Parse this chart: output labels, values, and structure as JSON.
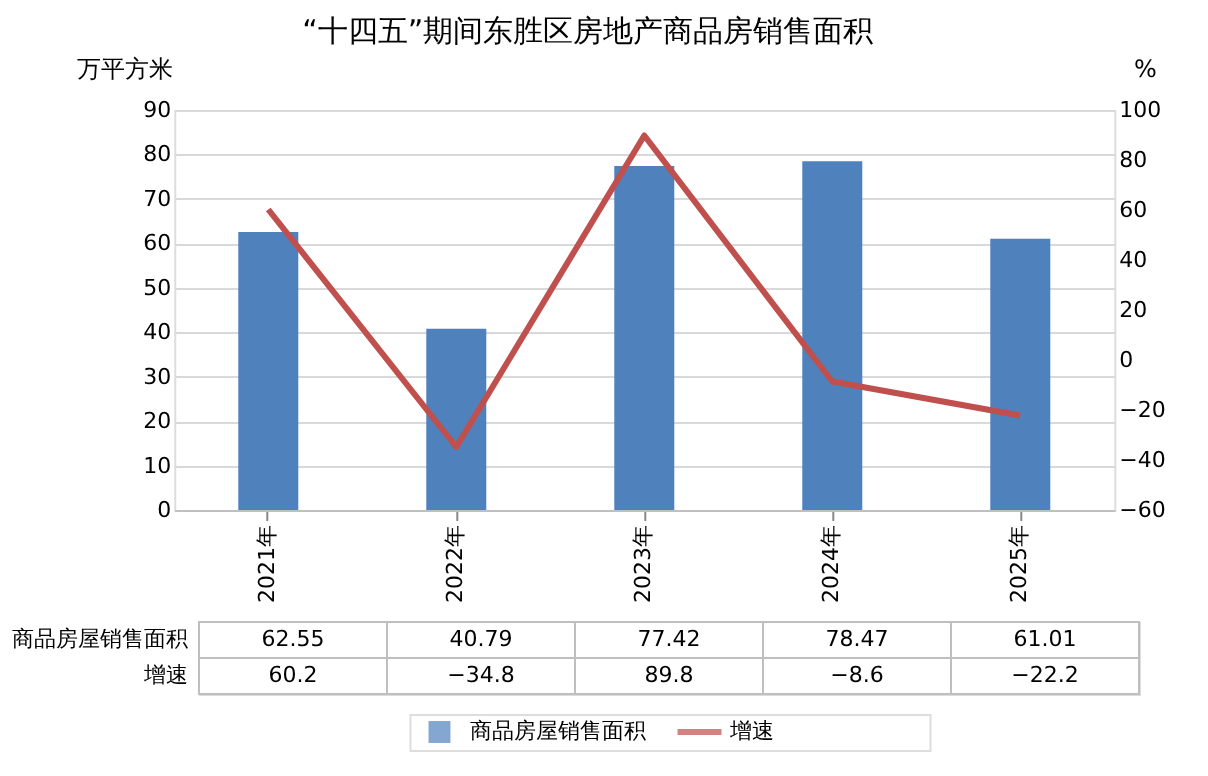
{
  "chart_data": {
    "type": "bar",
    "title": "“十四五”期间东胜区房地产商品房销售面积",
    "ylabel": "万平方米",
    "y2label": "%",
    "categories": [
      "2021年",
      "2022年",
      "2023年",
      "2024年",
      "2025年"
    ],
    "series": [
      {
        "name": "商品房屋销售面积",
        "color": "#4f81bd",
        "values": [
          62.55,
          40.79,
          77.42,
          78.47,
          61.01
        ]
      },
      {
        "name": "增速",
        "type": "line",
        "axis": "y2",
        "color": "#c0504d",
        "values": [
          60.2,
          -34.8,
          89.8,
          -8.6,
          -22.2
        ]
      }
    ],
    "ylim": [
      0,
      90
    ],
    "yticks": [
      0,
      10,
      20,
      30,
      40,
      50,
      60,
      70,
      80,
      90
    ],
    "y2lim": [
      -60,
      100
    ],
    "y2ticks": [
      -60,
      -40,
      -20,
      0,
      20,
      40,
      60,
      80,
      100
    ],
    "grid": "y",
    "data_labels": true,
    "legend": "bottom"
  }
}
